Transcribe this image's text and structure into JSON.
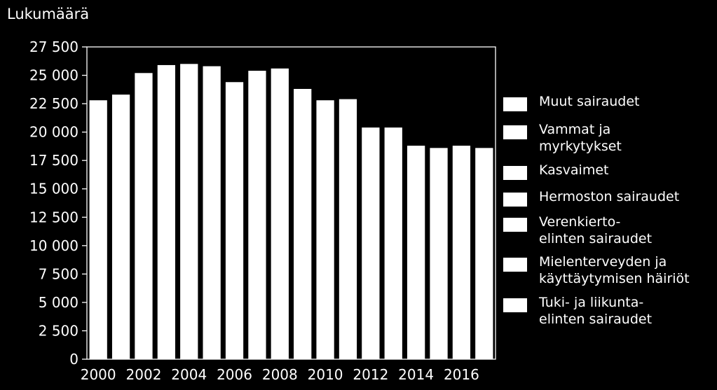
{
  "chart_data": {
    "type": "bar",
    "ylabel": "Lukumäärä",
    "categories": [
      "2000",
      "2001",
      "2002",
      "2003",
      "2004",
      "2005",
      "2006",
      "2007",
      "2008",
      "2009",
      "2010",
      "2011",
      "2012",
      "2013",
      "2014",
      "2015",
      "2016",
      "2017"
    ],
    "x_tick_labels": [
      "2000",
      "2002",
      "2004",
      "2006",
      "2008",
      "2010",
      "2012",
      "2014",
      "2016"
    ],
    "values": [
      22800,
      23300,
      25200,
      25900,
      26000,
      25800,
      24400,
      25400,
      25600,
      23800,
      22800,
      22900,
      20400,
      20400,
      18800,
      18600,
      18800,
      18600
    ],
    "ylim": [
      0,
      27500
    ],
    "y_ticks": [
      0,
      2500,
      5000,
      7500,
      10000,
      12500,
      15000,
      17500,
      20000,
      22500,
      25000,
      27500
    ],
    "y_tick_labels": [
      "0",
      "2 500",
      "5 000",
      "7 500",
      "10 000",
      "12 500",
      "15 000",
      "17 500",
      "20 000",
      "22 500",
      "25 000",
      "27 500"
    ],
    "grid": false,
    "legend_position": "right",
    "bar_color": "#ffffff",
    "background_color": "#000000",
    "legend": [
      "Muut sairaudet",
      "Vammat ja\nmyrkytykset",
      "Kasvaimet",
      "Hermoston sairaudet",
      "Verenkierto-\nelinten sairaudet",
      "Mielenterveyden ja\nkäyttäytymisen häiriöt",
      "Tuki- ja liikunta-\nelinten sairaudet"
    ]
  }
}
